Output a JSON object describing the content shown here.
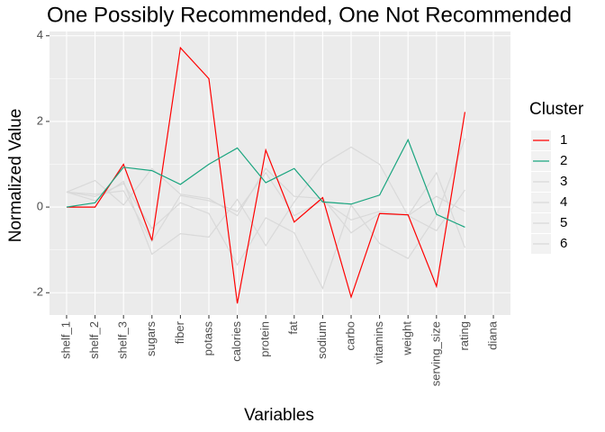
{
  "chart_data": {
    "type": "line",
    "title": "One Possibly Recommended, One Not Recommended",
    "x_label": "Variables",
    "y_label": "Normalized Value",
    "legend_title": "Cluster",
    "legend": "right",
    "grid": true,
    "categories": [
      "shelf_1",
      "shelf_2",
      "shelf_3",
      "sugars",
      "fiber",
      "potass",
      "calories",
      "protein",
      "fat",
      "sodium",
      "carbo",
      "vitamins",
      "weight",
      "serving_size",
      "rating",
      "diana"
    ],
    "ylim": [
      -2.52,
      4.1
    ],
    "yticks": [
      -2,
      0,
      2,
      4
    ],
    "series": [
      {
        "name": "1",
        "color": "#ff0000",
        "values": [
          0,
          0,
          1.0,
          -0.78,
          3.72,
          3.0,
          -2.25,
          1.33,
          -0.35,
          0.22,
          -2.1,
          -0.15,
          -0.18,
          -1.85,
          2.22,
          null
        ]
      },
      {
        "name": "2",
        "color": "#1aa57f",
        "values": [
          0,
          0.1,
          0.93,
          0.85,
          0.53,
          1.0,
          1.38,
          0.57,
          0.9,
          0.12,
          0.07,
          0.28,
          1.57,
          -0.17,
          -0.47,
          null
        ]
      },
      {
        "name": "3",
        "color": "#d9d9d9",
        "values": [
          0.35,
          0.62,
          0.05,
          0.9,
          0.3,
          0.2,
          -0.2,
          0.9,
          0.25,
          0.2,
          -0.6,
          -0.15,
          -0.2,
          0.8,
          -0.95,
          null
        ]
      },
      {
        "name": "4",
        "color": "#d9d9d9",
        "values": [
          0.35,
          0.15,
          0.6,
          -1.1,
          -0.62,
          -0.7,
          0.18,
          -0.9,
          0.12,
          1.0,
          1.4,
          1.0,
          -0.2,
          0.25,
          -0.1,
          null
        ]
      },
      {
        "name": "5",
        "color": "#d9d9d9",
        "values": [
          0.35,
          0.25,
          0.55,
          -0.5,
          0.1,
          -0.15,
          -1.35,
          -0.25,
          -0.6,
          -1.9,
          0.05,
          -0.85,
          -1.2,
          -0.2,
          1.6,
          null
        ]
      },
      {
        "name": "6",
        "color": "#d9d9d9",
        "values": [
          0.35,
          0.3,
          0.38,
          -0.8,
          0.27,
          0.15,
          -0.1,
          0.8,
          -0.2,
          0.15,
          -0.3,
          -0.1,
          -0.2,
          -0.55,
          0.4,
          null
        ]
      }
    ]
  }
}
